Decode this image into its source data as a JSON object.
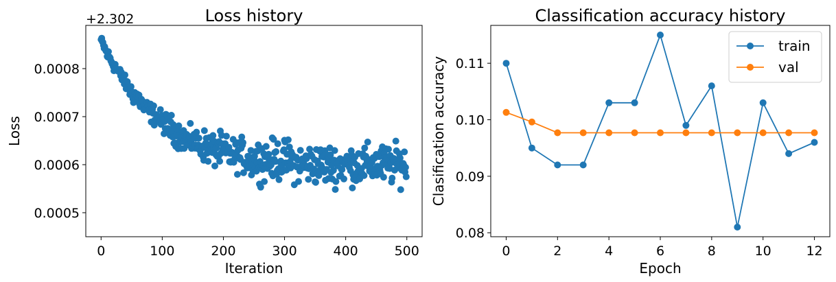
{
  "chart_data": [
    {
      "type": "scatter",
      "title": "Loss history",
      "xlabel": "Iteration",
      "ylabel": "Loss",
      "offset_text": "+2.302",
      "offset": 2.302,
      "xlim": [
        -25,
        525
      ],
      "ylim": [
        0.00045,
        0.00089
      ],
      "xticks": [
        0,
        100,
        200,
        300,
        400,
        500
      ],
      "xtick_labels": [
        "0",
        "100",
        "200",
        "300",
        "400",
        "500"
      ],
      "yticks": [
        0.0005,
        0.0006,
        0.0007,
        0.0008
      ],
      "ytick_labels": [
        "0.0005",
        "0.0006",
        "0.0007",
        "0.0008"
      ],
      "color": "#1f77b4",
      "series": [
        {
          "name": "loss",
          "x": [
            0,
            10,
            20,
            30,
            40,
            50,
            60,
            70,
            80,
            90,
            100,
            110,
            120,
            130,
            140,
            150,
            160,
            170,
            180,
            190,
            200,
            210,
            220,
            230,
            240,
            250,
            260,
            270,
            280,
            290,
            300,
            310,
            320,
            330,
            340,
            350,
            360,
            370,
            380,
            390,
            400,
            410,
            420,
            430,
            440,
            450,
            460,
            470,
            480,
            490,
            500
          ],
          "y": [
            0.00086,
            0.00083,
            0.00081,
            0.00079,
            0.00077,
            0.00075,
            0.00074,
            0.00072,
            0.00071,
            0.0007,
            0.00069,
            0.00068,
            0.00067,
            0.00066,
            0.00065,
            0.00065,
            0.00064,
            0.00064,
            0.00063,
            0.00063,
            0.00063,
            0.00062,
            0.00062,
            0.00062,
            0.00061,
            0.00061,
            0.00061,
            0.00061,
            0.00061,
            0.00061,
            0.00061,
            0.00061,
            0.0006,
            0.0006,
            0.0006,
            0.0006,
            0.0006,
            0.0006,
            0.0006,
            0.0006,
            0.0006,
            0.0006,
            0.0006,
            0.0006,
            0.0006,
            0.0006,
            0.0006,
            0.0006,
            0.0006,
            0.0006,
            0.0006
          ],
          "spread": [
            1e-05,
            2e-05,
            2e-05,
            2e-05,
            2e-05,
            3e-05,
            3e-05,
            3e-05,
            3e-05,
            3e-05,
            3e-05,
            4e-05,
            4e-05,
            4e-05,
            4e-05,
            4e-05,
            4e-05,
            5e-05,
            5e-05,
            5e-05,
            5e-05,
            5e-05,
            5e-05,
            5e-05,
            5e-05,
            6e-05,
            6e-05,
            6e-05,
            6e-05,
            6e-05,
            6e-05,
            6e-05,
            6e-05,
            6e-05,
            6e-05,
            6e-05,
            6e-05,
            6e-05,
            6e-05,
            6e-05,
            6e-05,
            6e-05,
            6e-05,
            6e-05,
            6e-05,
            6e-05,
            6e-05,
            6e-05,
            6e-05,
            6e-05,
            6e-05
          ],
          "points_per_step": 10
        }
      ]
    },
    {
      "type": "line",
      "title": "Classification accuracy history",
      "xlabel": "Epoch",
      "ylabel": "Clasification accuracy",
      "xlim": [
        -0.6,
        12.6
      ],
      "ylim": [
        0.0793,
        0.1167
      ],
      "xticks": [
        0,
        2,
        4,
        6,
        8,
        10,
        12
      ],
      "xtick_labels": [
        "0",
        "2",
        "4",
        "6",
        "8",
        "10",
        "12"
      ],
      "yticks": [
        0.08,
        0.09,
        0.1,
        0.11
      ],
      "ytick_labels": [
        "0.08",
        "0.09",
        "0.10",
        "0.11"
      ],
      "x": [
        0,
        1,
        2,
        3,
        4,
        5,
        6,
        7,
        8,
        9,
        10,
        11,
        12
      ],
      "series": [
        {
          "name": "train",
          "color": "#1f77b4",
          "values": [
            0.11,
            0.095,
            0.092,
            0.092,
            0.103,
            0.103,
            0.115,
            0.099,
            0.106,
            0.081,
            0.103,
            0.094,
            0.096
          ]
        },
        {
          "name": "val",
          "color": "#ff7f0e",
          "values": [
            0.1013,
            0.0996,
            0.0977,
            0.0977,
            0.0977,
            0.0977,
            0.0977,
            0.0977,
            0.0977,
            0.0977,
            0.0977,
            0.0977,
            0.0977
          ]
        }
      ],
      "legend": "top-right"
    }
  ]
}
